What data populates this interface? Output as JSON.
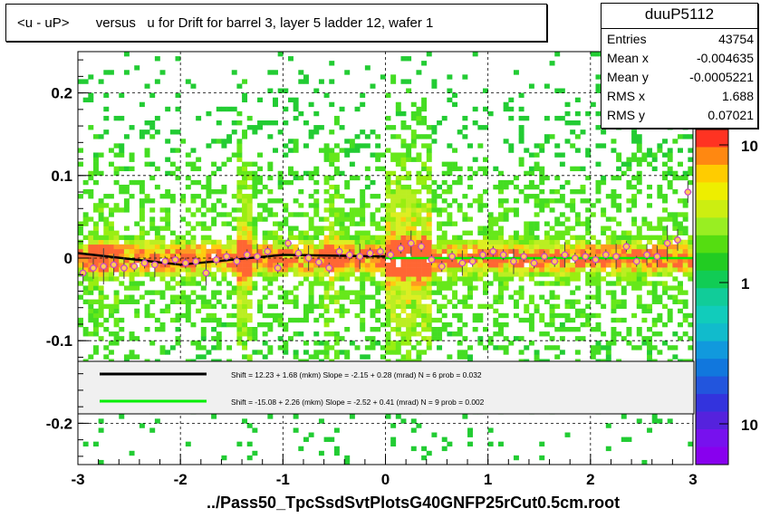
{
  "title": "<u - uP>       versus   u for Drift for barrel 3, layer 5 ladder 12, wafer 1",
  "footer": "../Pass50_TpcSsdSvtPlotsG40GNFP25rCut0.5cm.root",
  "stats": {
    "name": "duuP5112",
    "rows": [
      {
        "label": "Entries",
        "value": "43754"
      },
      {
        "label": "Mean x",
        "value": "-0.004635"
      },
      {
        "label": "Mean y",
        "value": "-0.0005221"
      },
      {
        "label": "RMS x",
        "value": "1.688"
      },
      {
        "label": "RMS y",
        "value": "0.07021"
      }
    ]
  },
  "legend": [
    {
      "text": "Shift =    12.23 + 1.68 (mkm) Slope =    -2.15 + 0.28 (mrad)  N = 6 prob = 0.032",
      "color": "#000000"
    },
    {
      "text": "Shift =   -15.08 + 2.26 (mkm) Slope =    -2.52 + 0.41 (mrad)  N = 9 prob = 0.002",
      "color": "#00ee00"
    }
  ],
  "chart_data": {
    "type": "heatmap",
    "xlim": [
      -3,
      3
    ],
    "ylim": [
      -0.25,
      0.25
    ],
    "x_ticks": [
      "-3",
      "-2",
      "-1",
      "0",
      "1",
      "2",
      "3"
    ],
    "y_ticks": [
      "-0.2",
      "-0.1",
      "0",
      "0.1",
      "0.2"
    ],
    "colorbar_labels": [
      "10",
      "1",
      "10"
    ],
    "grid": true,
    "profile_points": {
      "x": [
        -2.95,
        -2.85,
        -2.75,
        -2.65,
        -2.55,
        -2.45,
        -2.35,
        -2.25,
        -2.15,
        -2.05,
        -1.95,
        -1.85,
        -1.75,
        -1.65,
        -1.55,
        -1.45,
        -1.35,
        -1.25,
        -1.15,
        -1.05,
        -0.95,
        -0.85,
        -0.75,
        -0.65,
        -0.55,
        -0.45,
        -0.35,
        -0.25,
        -0.15,
        -0.05,
        0.05,
        0.15,
        0.25,
        0.35,
        0.45,
        0.55,
        0.65,
        0.75,
        0.85,
        0.95,
        1.05,
        1.15,
        1.25,
        1.35,
        1.45,
        1.55,
        1.65,
        1.75,
        1.85,
        1.95,
        2.05,
        2.15,
        2.25,
        2.35,
        2.45,
        2.55,
        2.65,
        2.75,
        2.85,
        2.95
      ],
      "y": [
        -0.018,
        -0.012,
        -0.01,
        -0.008,
        -0.012,
        -0.01,
        -0.006,
        -0.008,
        -0.004,
        -0.002,
        -0.006,
        -0.004,
        -0.018,
        -0.002,
        0.002,
        -0.004,
        0.004,
        0.002,
        0.008,
        -0.012,
        0.018,
        0.006,
        0.0,
        -0.005,
        -0.012,
        0.008,
        0.004,
        0.002,
        0.006,
        0.008,
        0.004,
        0.012,
        0.018,
        0.014,
        -0.002,
        -0.01,
        0.002,
        -0.006,
        -0.004,
        0.004,
        0.008,
        0.004,
        -0.004,
        0.002,
        -0.006,
        0.002,
        -0.004,
        0.004,
        0.0,
        0.002,
        -0.002,
        0.004,
        0.002,
        0.014,
        -0.004,
        0.004,
        0.002,
        0.018,
        0.022,
        0.08
      ]
    },
    "fit_lines": [
      {
        "x": [
          -3,
          -2,
          -1,
          0
        ],
        "y": [
          0.006,
          -0.008,
          0.004,
          0.002
        ]
      },
      {
        "x": [
          0,
          3
        ],
        "y": [
          0.0,
          0.0
        ]
      }
    ]
  }
}
